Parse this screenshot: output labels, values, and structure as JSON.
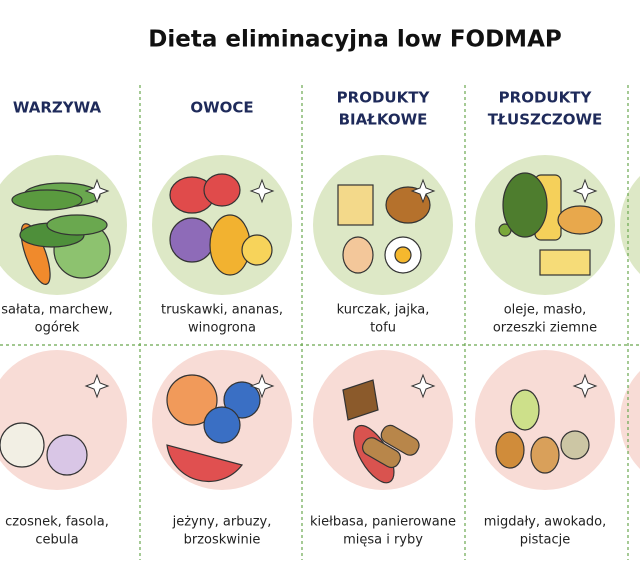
{
  "title": "Dieta eliminacyjna low FODMAP",
  "columns": [
    {
      "header": [
        "WARZYWA"
      ],
      "allowed": [
        "sałata, marchew,",
        "ogórek"
      ],
      "avoid": [
        "czosnek, fasola,",
        "cebula"
      ]
    },
    {
      "header": [
        "OWOCE"
      ],
      "allowed": [
        "truskawki, ananas,",
        "winogrona"
      ],
      "avoid": [
        "jeżyny, arbuzy,",
        "brzoskwinie"
      ]
    },
    {
      "header": [
        "PRODUKTY",
        "BIAŁKOWE"
      ],
      "allowed": [
        "kurczak, jajka,",
        "tofu"
      ],
      "avoid": [
        "kiełbasa, panierowane",
        "mięsa i ryby"
      ]
    },
    {
      "header": [
        "PRODUKTY",
        "TŁUSZCZOWE"
      ],
      "allowed": [
        "oleje, masło,",
        "orzeszki ziemne"
      ],
      "avoid": [
        "migdały, awokado,",
        "pistacje"
      ]
    }
  ]
}
